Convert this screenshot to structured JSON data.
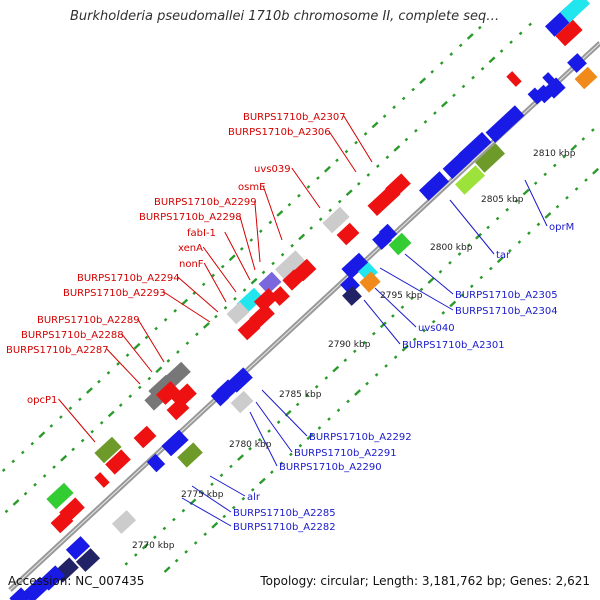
{
  "title": "Burkholderia pseudomallei 1710b chromosome II, complete seq…",
  "footer": {
    "accession": "Accession: NC_007435",
    "summary": "Topology: circular; Length: 3,181,762 bp; Genes: 2,621"
  },
  "scale_labels": [
    "2770 kbp",
    "2775 kbp",
    "2780 kbp",
    "2785 kbp",
    "2790 kbp",
    "2795 kbp",
    "2800 kbp",
    "2805 kbp",
    "2810 kbp"
  ],
  "gene_labels_left": [
    "BURPS1710b_A2307",
    "BURPS1710b_A2306",
    "uvs039",
    "osmE",
    "BURPS1710b_A2299",
    "BURPS1710b_A2298",
    "fabI-1",
    "xenA",
    "nonF",
    "BURPS1710b_A2294",
    "BURPS1710b_A2293",
    "BURPS1710b_A2289",
    "BURPS1710b_A2288",
    "BURPS1710b_A2287",
    "opcP1"
  ],
  "gene_labels_right": [
    "oprM",
    "tar",
    "BURPS1710b_A2305",
    "BURPS1710b_A2304",
    "uvs040",
    "BURPS1710b_A2301",
    "BURPS1710b_A2292",
    "BURPS1710b_A2291",
    "BURPS1710b_A2290",
    "alr",
    "BURPS1710b_A2285",
    "BURPS1710b_A2282"
  ],
  "colors": {
    "backbone": "#999999",
    "tick": "#2a9a2a",
    "forward_label": "#d40000",
    "reverse_label": "#1a1acc",
    "gene_red": "#ee1111",
    "gene_blue": "#1a1ae6",
    "gene_gray": "#cccccc",
    "gene_darkgray": "#777777",
    "gene_olive": "#6e9a2a",
    "gene_lime": "#9de23a",
    "gene_green": "#33cc33",
    "gene_cyan": "#22e6ee",
    "gene_orange": "#f08a1a",
    "gene_purple": "#7a66dd",
    "gene_navy": "#222266"
  }
}
